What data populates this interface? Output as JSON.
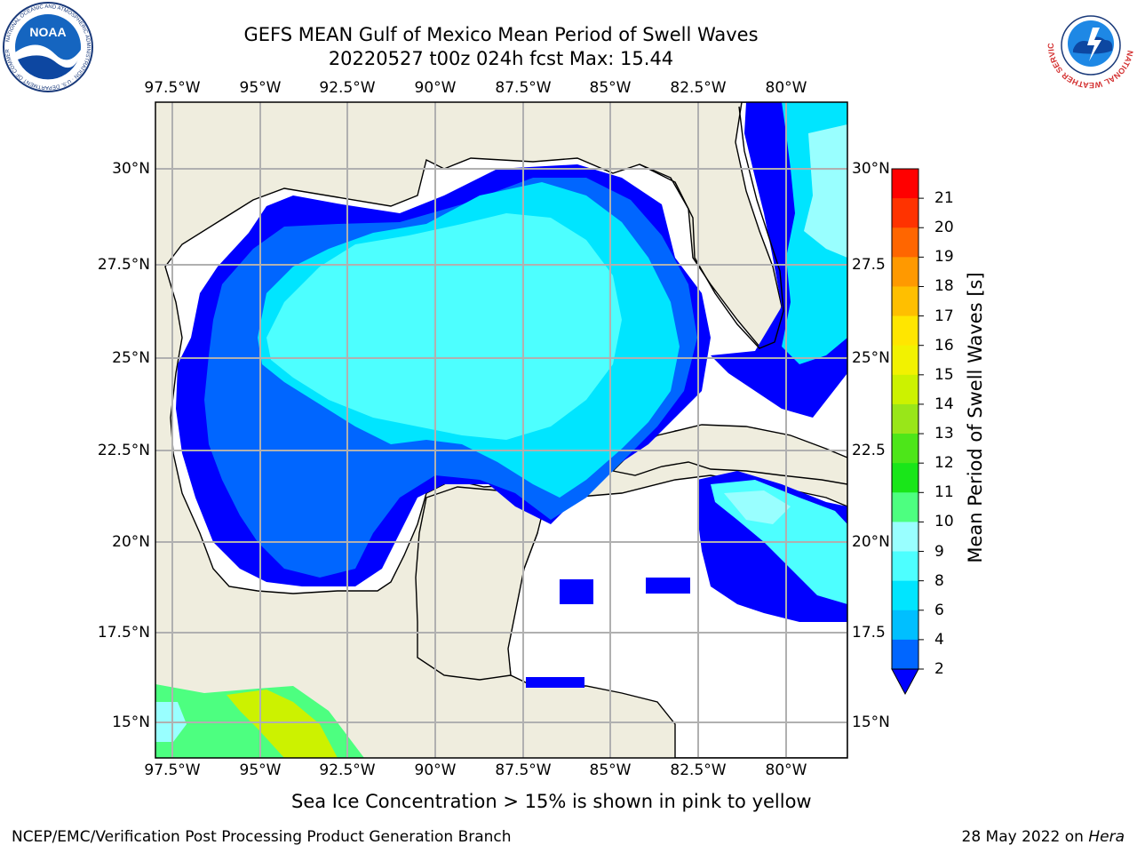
{
  "title": {
    "line1": "GEFS MEAN Gulf of Mexico Mean Period of Swell Waves",
    "line2": "20220527 t00z 024h fcst   Max: 15.44"
  },
  "axes": {
    "lon_labels": [
      "97.5°W",
      "95°W",
      "92.5°W",
      "90°W",
      "87.5°W",
      "85°W",
      "82.5°W",
      "80°W"
    ],
    "lat_labels_left": [
      "30°N",
      "27.5°N",
      "25°N",
      "22.5°N",
      "20°N",
      "17.5°N",
      "15°N"
    ],
    "lat_labels_right": [
      "30°N",
      "27.5",
      "25°N",
      "22.5",
      "20°N",
      "17.5",
      "15°N"
    ]
  },
  "colorbar": {
    "label": "Mean Period of Swell Waves [s]",
    "tick_labels": [
      "2",
      "4",
      "6",
      "8",
      "9",
      "10",
      "11",
      "12",
      "13",
      "14",
      "15",
      "16",
      "17",
      "18",
      "19",
      "20",
      "21"
    ],
    "colors": [
      "#0066ff",
      "#00bfff",
      "#00e5ff",
      "#4dffff",
      "#99ffff",
      "#4dff80",
      "#19e619",
      "#4de619",
      "#99e619",
      "#ccf200",
      "#f2f200",
      "#ffe600",
      "#ffbf00",
      "#ff9900",
      "#ff6600",
      "#ff3300",
      "#ff0000"
    ],
    "extend_color": "#0000ff"
  },
  "subtitle": "Sea Ice Concentration > 15% is shown in pink to yellow",
  "footer": {
    "left": "NCEP/EMC/Verification Post Processing Product Generation Branch",
    "right_prefix": "28 May 2022 on ",
    "right_machine": "Hera"
  },
  "logos": {
    "noaa": "NOAA",
    "noaa_ring": "NATIONAL OCEANIC AND ATMOSPHERIC ADMINISTRATION · U.S. DEPARTMENT OF COMMERCE",
    "nws_ring": "NATIONAL WEATHER SERVICE"
  },
  "legend_colors": {
    "land": "#efedde",
    "level_2_4": "#0066ff",
    "level_4_6": "#00e5ff",
    "below_2": "#0000ff",
    "light_cyan": "#4dffff"
  }
}
